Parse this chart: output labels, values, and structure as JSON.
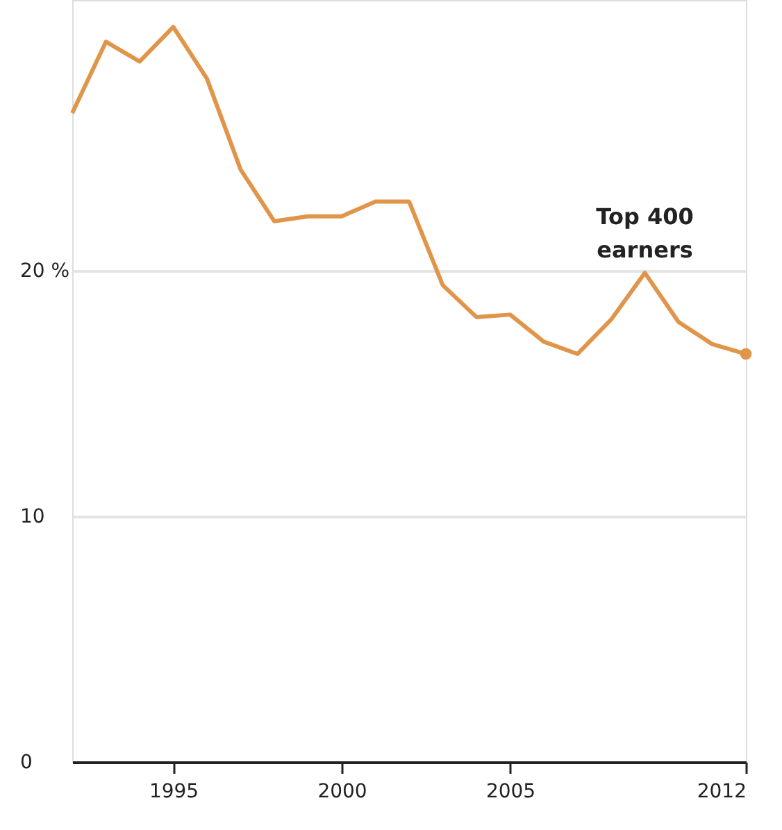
{
  "chart_data": {
    "type": "line",
    "x": [
      1992,
      1993,
      1994,
      1995,
      1996,
      1997,
      1998,
      1999,
      2000,
      2001,
      2002,
      2003,
      2004,
      2005,
      2006,
      2007,
      2008,
      2009,
      2010,
      2011,
      2012
    ],
    "series": [
      {
        "color": "#e0954a",
        "values": [
          26.4,
          29.3,
          28.5,
          29.9,
          27.8,
          24.1,
          22.0,
          22.2,
          22.2,
          22.8,
          22.8,
          19.4,
          18.1,
          18.2,
          17.1,
          16.6,
          18.0,
          19.9,
          17.9,
          17.0,
          16.6
        ]
      }
    ],
    "annotations": [
      {
        "text": "Top 400\nearners",
        "x": 2009,
        "y": 19.9
      }
    ],
    "xlim": [
      1992,
      2012
    ],
    "xticks": [
      1995,
      2000,
      2005,
      2012
    ],
    "ylim": [
      0,
      31
    ],
    "yticks": [
      0,
      10,
      {
        "value": 20,
        "label": "20 %"
      }
    ],
    "grid": "y",
    "line_style": "solid"
  }
}
